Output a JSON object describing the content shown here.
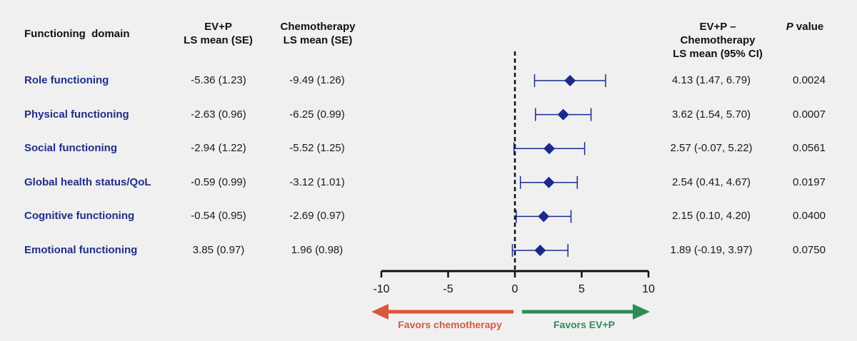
{
  "headers": {
    "domain": "Functioning  domain",
    "evp": [
      "EV+P",
      "LS mean (SE)"
    ],
    "chemo": [
      "Chemotherapy",
      "LS mean (SE)"
    ],
    "diff": [
      "EV+P –",
      "Chemotherapy",
      "LS mean (95% CI)"
    ],
    "pvalue_italic": "P",
    "pvalue_rest": " value"
  },
  "rows": [
    {
      "domain": "Role functioning",
      "evp": "-5.36 (1.23)",
      "chemo": "-9.49 (1.26)",
      "diff": "4.13 (1.47, 6.79)",
      "p": "0.0024"
    },
    {
      "domain": "Physical functioning",
      "evp": "-2.63 (0.96)",
      "chemo": "-6.25 (0.99)",
      "diff": "3.62 (1.54, 5.70)",
      "p": "0.0007"
    },
    {
      "domain": "Social functioning",
      "evp": "-2.94 (1.22)",
      "chemo": "-5.52 (1.25)",
      "diff": "2.57 (-0.07, 5.22)",
      "p": "0.0561"
    },
    {
      "domain": "Global health status/QoL",
      "evp": "-0.59 (0.99)",
      "chemo": "-3.12 (1.01)",
      "diff": "2.54 (0.41, 4.67)",
      "p": "0.0197"
    },
    {
      "domain": "Cognitive functioning",
      "evp": "-0.54 (0.95)",
      "chemo": "-2.69 (0.97)",
      "diff": "2.15 (0.10, 4.20)",
      "p": "0.0400"
    },
    {
      "domain": "Emotional functioning",
      "evp": "3.85 (0.97)",
      "chemo": "1.96 (0.98)",
      "diff": "1.89 (-0.19, 3.97)",
      "p": "0.0750"
    }
  ],
  "chart_data": {
    "type": "scatter",
    "categories": [
      "Role functioning",
      "Physical functioning",
      "Social functioning",
      "Global health status/QoL",
      "Cognitive functioning",
      "Emotional functioning"
    ],
    "estimates": [
      4.13,
      3.62,
      2.57,
      2.54,
      2.15,
      1.89
    ],
    "ci_low": [
      1.47,
      1.54,
      -0.07,
      0.41,
      0.1,
      -0.19
    ],
    "ci_high": [
      6.79,
      5.7,
      5.22,
      4.67,
      4.2,
      3.97
    ],
    "xlim": [
      -10,
      10
    ],
    "xticks": [
      -10,
      -5,
      0,
      5,
      10
    ],
    "reference_line": 0,
    "marker_color": "#1a2a8c",
    "left_arrow": {
      "label": "Favors chemotherapy",
      "color": "#d9573b"
    },
    "right_arrow": {
      "label": "Favors EV+P",
      "color": "#2e8b57"
    }
  }
}
